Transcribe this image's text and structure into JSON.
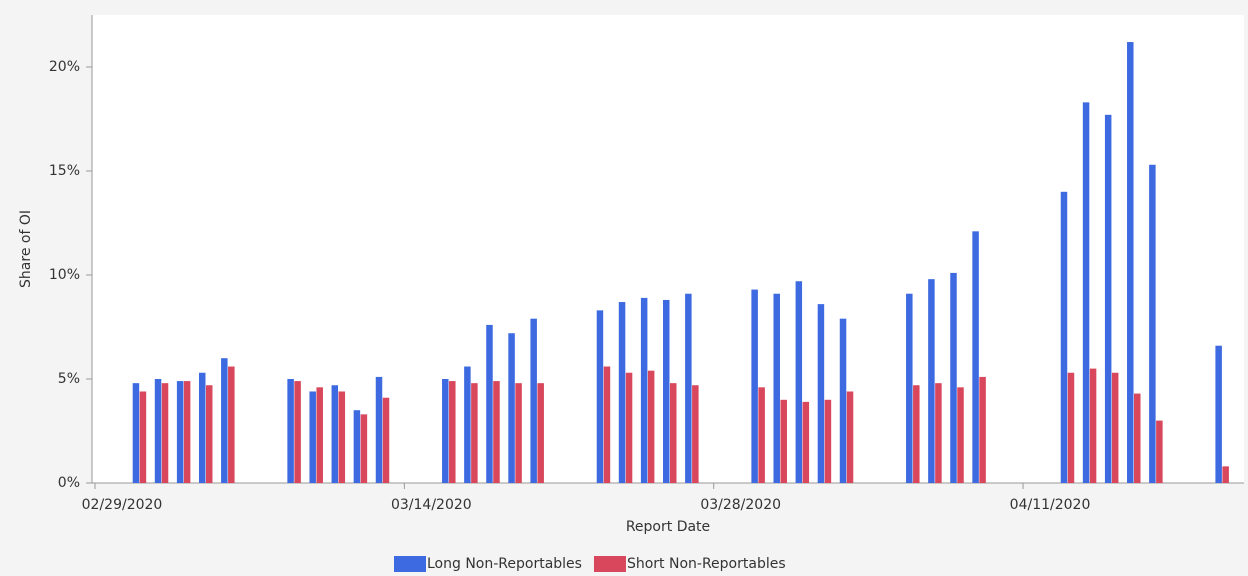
{
  "chart_data": {
    "type": "bar",
    "x_label": "Report Date",
    "y_label": "Share of OI",
    "x": [
      "03/02/2020",
      "03/03/2020",
      "03/04/2020",
      "03/05/2020",
      "03/06/2020",
      "03/09/2020",
      "03/10/2020",
      "03/11/2020",
      "03/12/2020",
      "03/13/2020",
      "03/16/2020",
      "03/17/2020",
      "03/18/2020",
      "03/19/2020",
      "03/20/2020",
      "03/23/2020",
      "03/24/2020",
      "03/25/2020",
      "03/26/2020",
      "03/27/2020",
      "03/30/2020",
      "03/31/2020",
      "04/01/2020",
      "04/02/2020",
      "04/03/2020",
      "04/06/2020",
      "04/07/2020",
      "04/08/2020",
      "04/09/2020",
      "04/13/2020",
      "04/14/2020",
      "04/15/2020",
      "04/16/2020",
      "04/17/2020",
      "04/20/2020"
    ],
    "series": [
      {
        "name": "Long Non-Reportables",
        "color": "#3d6ae0",
        "values": [
          4.8,
          5.0,
          4.9,
          5.3,
          6.0,
          5.0,
          4.4,
          4.7,
          3.5,
          5.1,
          5.0,
          5.6,
          7.6,
          7.2,
          7.9,
          8.3,
          8.7,
          8.9,
          8.8,
          9.1,
          9.3,
          9.1,
          9.7,
          8.6,
          7.9,
          9.1,
          9.8,
          10.1,
          12.1,
          14.0,
          18.3,
          17.7,
          21.2,
          15.3,
          6.6
        ]
      },
      {
        "name": "Short Non-Reportables",
        "color": "#d8475b",
        "values": [
          4.4,
          4.8,
          4.9,
          4.7,
          5.6,
          4.9,
          4.6,
          4.4,
          3.3,
          4.1,
          4.9,
          4.8,
          4.9,
          4.8,
          4.8,
          5.6,
          5.3,
          5.4,
          4.8,
          4.7,
          4.6,
          4.0,
          3.9,
          4.0,
          4.4,
          4.7,
          4.8,
          4.6,
          5.1,
          5.3,
          5.5,
          5.3,
          4.3,
          3.0,
          0.8
        ]
      }
    ],
    "xlim": [
      "02/29/2020",
      "04/21/2020"
    ],
    "xticks": [
      "02/29/2020",
      "03/14/2020",
      "03/28/2020",
      "04/11/2020"
    ],
    "ylim": [
      0,
      22.5
    ],
    "yticks": [
      {
        "value": 0,
        "label": "0%"
      },
      {
        "value": 5,
        "label": "5%"
      },
      {
        "value": 10,
        "label": "10%"
      },
      {
        "value": 15,
        "label": "15%"
      },
      {
        "value": 20,
        "label": "20%"
      }
    ],
    "grid": false,
    "legend": "bottom"
  }
}
